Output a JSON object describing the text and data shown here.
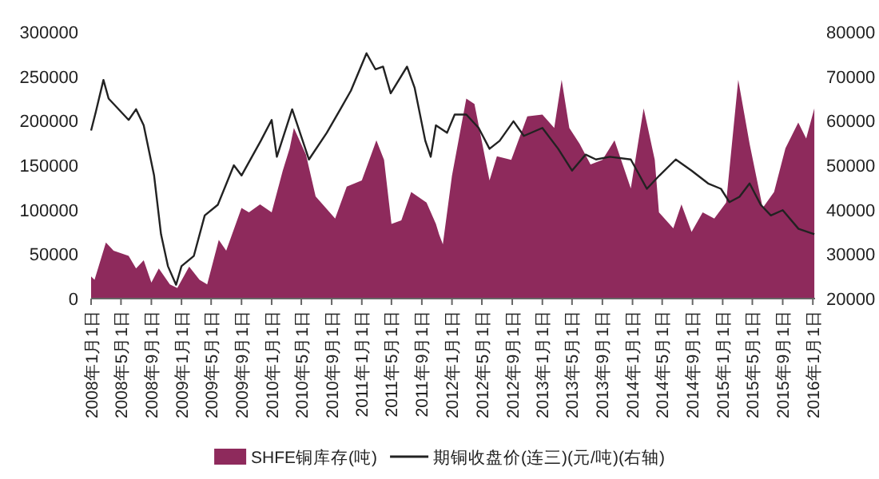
{
  "chart_data": {
    "type": "area",
    "series": [
      {
        "name": "SHFE铜库存(吨)",
        "color": "#8e2a5c",
        "x": [
          "2008-01-01",
          "2008-01-15",
          "2008-03-01",
          "2008-04-01",
          "2008-06-01",
          "2008-07-01",
          "2008-08-01",
          "2008-09-01",
          "2008-10-01",
          "2008-11-15",
          "2008-12-15",
          "2009-02-01",
          "2009-03-15",
          "2009-04-15",
          "2009-06-01",
          "2009-07-01",
          "2009-09-01",
          "2009-10-01",
          "2009-11-15",
          "2010-01-01",
          "2010-02-15",
          "2010-03-15",
          "2010-04-01",
          "2010-05-20",
          "2010-06-28",
          "2010-09-15",
          "2010-11-01",
          "2011-01-01",
          "2011-03-01",
          "2011-04-01",
          "2011-05-01",
          "2011-06-10",
          "2011-07-20",
          "2011-09-20",
          "2011-10-28",
          "2011-11-10",
          "2011-11-25",
          "2012-01-01",
          "2012-02-28",
          "2012-04-01",
          "2012-06-01",
          "2012-07-01",
          "2012-08-28",
          "2012-11-01",
          "2013-01-01",
          "2013-02-18",
          "2013-03-20",
          "2013-04-20",
          "2013-06-01",
          "2013-07-15",
          "2013-09-01",
          "2013-10-20",
          "2013-12-25",
          "2014-02-15",
          "2014-04-01",
          "2014-04-18",
          "2014-06-15",
          "2014-07-18",
          "2014-08-28",
          "2014-10-12",
          "2014-11-28",
          "2015-01-15",
          "2015-03-05",
          "2015-04-20",
          "2015-06-12",
          "2015-07-28",
          "2015-09-12",
          "2015-11-03",
          "2015-12-05",
          "2016-01-07"
        ],
        "values": [
          25000,
          21000,
          63000,
          54000,
          48000,
          34000,
          43000,
          18000,
          34000,
          16000,
          12000,
          36000,
          21000,
          16000,
          66000,
          54000,
          102000,
          97000,
          106000,
          97000,
          144000,
          169000,
          192000,
          162000,
          115000,
          90000,
          126000,
          133000,
          178000,
          156000,
          84000,
          88000,
          120000,
          108000,
          84000,
          72000,
          61000,
          138000,
          225000,
          219000,
          133000,
          160000,
          156000,
          205000,
          207000,
          192000,
          246000,
          192000,
          174000,
          151000,
          156000,
          178000,
          124000,
          214000,
          156000,
          97000,
          79000,
          106000,
          75000,
          97000,
          90000,
          108000,
          246000,
          174000,
          102000,
          120000,
          169000,
          198000,
          180000,
          214000
        ]
      },
      {
        "name": "期铜收盘价(连三)(元/吨)(右轴)",
        "type": "line",
        "axis": "y2",
        "color": "#222222",
        "x": [
          "2008-01-01",
          "2008-01-20",
          "2008-02-20",
          "2008-03-12",
          "2008-06-01",
          "2008-07-01",
          "2008-08-01",
          "2008-09-12",
          "2008-10-10",
          "2008-11-07",
          "2008-12-10",
          "2009-01-01",
          "2009-02-20",
          "2009-04-05",
          "2009-05-28",
          "2009-08-01",
          "2009-09-01",
          "2009-11-18",
          "2010-01-01",
          "2010-01-22",
          "2010-03-25",
          "2010-06-01",
          "2010-08-12",
          "2010-10-06",
          "2010-11-18",
          "2011-01-20",
          "2011-02-25",
          "2011-03-28",
          "2011-04-28",
          "2011-07-03",
          "2011-08-03",
          "2011-09-15",
          "2011-10-07",
          "2011-10-28",
          "2011-12-12",
          "2012-01-12",
          "2012-02-28",
          "2012-04-18",
          "2012-06-01",
          "2012-07-12",
          "2012-09-06",
          "2012-10-18",
          "2013-01-01",
          "2013-03-06",
          "2013-05-01",
          "2013-06-25",
          "2013-08-06",
          "2013-10-01",
          "2013-12-25",
          "2014-02-28",
          "2014-04-20",
          "2014-06-25",
          "2014-08-28",
          "2014-11-03",
          "2014-12-25",
          "2015-01-28",
          "2015-03-10",
          "2015-04-20",
          "2015-06-04",
          "2015-07-15",
          "2015-09-01",
          "2015-11-04",
          "2016-01-07"
        ],
        "values": [
          57800,
          62000,
          69200,
          65000,
          60200,
          62600,
          59000,
          47700,
          34500,
          27300,
          23100,
          27300,
          29600,
          38700,
          41100,
          50000,
          47700,
          55500,
          60200,
          51900,
          62600,
          51300,
          57300,
          62600,
          66800,
          75200,
          71600,
          72200,
          66200,
          72200,
          67400,
          55500,
          51900,
          59000,
          57300,
          61400,
          61400,
          58400,
          53700,
          55500,
          59900,
          56600,
          58400,
          53700,
          48800,
          52400,
          51300,
          51900,
          51300,
          44700,
          47700,
          51300,
          48800,
          45900,
          44700,
          41700,
          42900,
          45900,
          41100,
          38700,
          39900,
          35700,
          34500
        ]
      }
    ],
    "xlim": [
      "2008-01-01",
      "2016-01-10"
    ],
    "xticks": [
      {
        "value": "2008-01-01",
        "label": "2008年1月1日"
      },
      {
        "value": "2008-05-01",
        "label": "2008年5月1日"
      },
      {
        "value": "2008-09-01",
        "label": "2008年9月1日"
      },
      {
        "value": "2009-01-01",
        "label": "2009年1月1日"
      },
      {
        "value": "2009-05-01",
        "label": "2009年5月1日"
      },
      {
        "value": "2009-09-01",
        "label": "2009年9月1日"
      },
      {
        "value": "2010-01-01",
        "label": "2010年1月1日"
      },
      {
        "value": "2010-05-01",
        "label": "2010年5月1日"
      },
      {
        "value": "2010-09-01",
        "label": "2010年9月1日"
      },
      {
        "value": "2011-01-01",
        "label": "2011年1月1日"
      },
      {
        "value": "2011-05-01",
        "label": "2011年5月1日"
      },
      {
        "value": "2011-09-01",
        "label": "2011年9月1日"
      },
      {
        "value": "2012-01-01",
        "label": "2012年1月1日"
      },
      {
        "value": "2012-05-01",
        "label": "2012年5月1日"
      },
      {
        "value": "2012-09-01",
        "label": "2012年9月1日"
      },
      {
        "value": "2013-01-01",
        "label": "2013年1月1日"
      },
      {
        "value": "2013-05-01",
        "label": "2013年5月1日"
      },
      {
        "value": "2013-09-01",
        "label": "2013年9月1日"
      },
      {
        "value": "2014-01-01",
        "label": "2014年1月1日"
      },
      {
        "value": "2014-05-01",
        "label": "2014年5月1日"
      },
      {
        "value": "2014-09-01",
        "label": "2014年9月1日"
      },
      {
        "value": "2015-01-01",
        "label": "2015年1月1日"
      },
      {
        "value": "2015-05-01",
        "label": "2015年5月1日"
      },
      {
        "value": "2015-09-01",
        "label": "2015年9月1日"
      },
      {
        "value": "2016-01-01",
        "label": "2016年1月1日"
      }
    ],
    "ylim": [
      0,
      300000
    ],
    "yticks": [
      0,
      50000,
      100000,
      150000,
      200000,
      250000,
      300000
    ],
    "y2lim": [
      20000,
      80000
    ],
    "y2ticks": [
      20000,
      30000,
      40000,
      50000,
      60000,
      70000,
      80000
    ],
    "legend": "bottom"
  }
}
